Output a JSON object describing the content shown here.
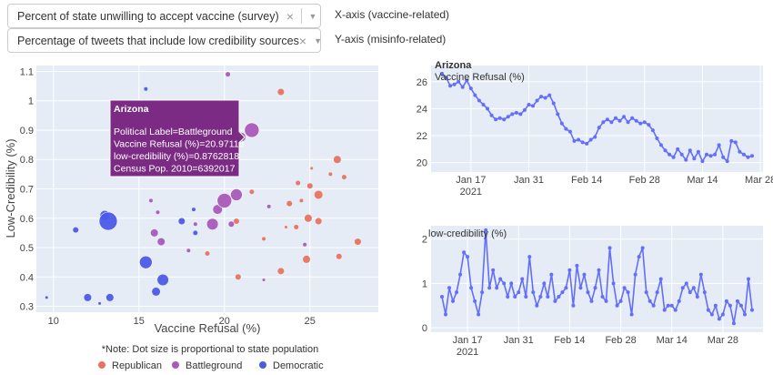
{
  "controls": {
    "x_select": {
      "value": "Percent of state unwilling to accept vaccine (survey)",
      "label": "X-axis (vaccine-related)"
    },
    "y_select": {
      "value": "Percentage of tweets that include low credibility sources",
      "label": "Y-axis (misinfo-related)"
    }
  },
  "modebar": [
    "camera-icon",
    "zoom-icon",
    "pan-icon",
    "box-select-icon",
    "lasso-icon",
    "zoom-in-icon",
    "zoom-out-icon",
    "autoscale-icon",
    "reset-axes-icon",
    "spike-lines-icon",
    "hover-closest-icon",
    "hover-compare-icon",
    "plotly-logo-icon"
  ],
  "colors": {
    "Republican": "#E8735F",
    "Battleground": "#A95AB8",
    "Democratic": "#4B5BE8",
    "line": "#636EFA",
    "plot_bg": "#E5ECF6"
  },
  "note": "*Note: Dot size is proportional to state population",
  "tooltip": {
    "title": "Arizona",
    "lines": [
      "Political Label=Battleground",
      "Vaccine Refusal (%)=20.97118",
      "low-credibility (%)=0.8762818",
      "Census Pop. 2010=6392017"
    ]
  },
  "chart_data": [
    {
      "type": "scatter",
      "xlabel": "Vaccine Refusal (%)",
      "ylabel": "Low-Credibility (%)",
      "xlim": [
        9,
        29
      ],
      "ylim": [
        0.28,
        1.12
      ],
      "x_ticks": [
        10,
        15,
        20,
        25
      ],
      "y_ticks": [
        0.3,
        0.4,
        0.5,
        0.6,
        0.7,
        0.8,
        0.9,
        1,
        1.1
      ],
      "legend": [
        "Republican",
        "Battleground",
        "Democratic"
      ],
      "points": [
        {
          "x": 9.6,
          "y": 0.33,
          "g": "Democratic",
          "s": 1.5
        },
        {
          "x": 11.3,
          "y": 0.56,
          "g": "Democratic",
          "s": 3
        },
        {
          "x": 12,
          "y": 0.33,
          "g": "Democratic",
          "s": 4
        },
        {
          "x": 12.7,
          "y": 0.31,
          "g": "Democratic",
          "s": 1.5
        },
        {
          "x": 13,
          "y": 0.61,
          "g": "Democratic",
          "s": 5
        },
        {
          "x": 13.2,
          "y": 0.59,
          "g": "Democratic",
          "s": 10
        },
        {
          "x": 13.3,
          "y": 0.33,
          "g": "Democratic",
          "s": 4
        },
        {
          "x": 15.4,
          "y": 1.04,
          "g": "Democratic",
          "s": 2
        },
        {
          "x": 15.4,
          "y": 0.45,
          "g": "Democratic",
          "s": 7
        },
        {
          "x": 16,
          "y": 0.35,
          "g": "Democratic",
          "s": 4.5
        },
        {
          "x": 16.4,
          "y": 0.39,
          "g": "Democratic",
          "s": 6
        },
        {
          "x": 17.5,
          "y": 0.59,
          "g": "Democratic",
          "s": 3.5
        },
        {
          "x": 18.3,
          "y": 0.55,
          "g": "Democratic",
          "s": 2.5
        },
        {
          "x": 18.2,
          "y": 0.63,
          "g": "Democratic",
          "s": 2
        },
        {
          "x": 15.7,
          "y": 0.66,
          "g": "Battleground",
          "s": 2
        },
        {
          "x": 15.9,
          "y": 0.55,
          "g": "Battleground",
          "s": 4
        },
        {
          "x": 16.3,
          "y": 0.52,
          "g": "Battleground",
          "s": 4
        },
        {
          "x": 16.1,
          "y": 0.62,
          "g": "Battleground",
          "s": 2
        },
        {
          "x": 17.9,
          "y": 0.49,
          "g": "Battleground",
          "s": 2
        },
        {
          "x": 18.3,
          "y": 0.58,
          "g": "Battleground",
          "s": 2
        },
        {
          "x": 19.3,
          "y": 0.58,
          "g": "Battleground",
          "s": 6
        },
        {
          "x": 19.6,
          "y": 0.63,
          "g": "Battleground",
          "s": 5
        },
        {
          "x": 20,
          "y": 0.66,
          "g": "Battleground",
          "s": 8
        },
        {
          "x": 20.2,
          "y": 1.09,
          "g": "Battleground",
          "s": 2.5
        },
        {
          "x": 20.4,
          "y": 0.58,
          "g": "Battleground",
          "s": 3
        },
        {
          "x": 20.7,
          "y": 0.68,
          "g": "Battleground",
          "s": 6.5
        },
        {
          "x": 20.97,
          "y": 0.876,
          "g": "Battleground",
          "s": 5
        },
        {
          "x": 21.6,
          "y": 0.9,
          "g": "Battleground",
          "s": 8
        },
        {
          "x": 22.6,
          "y": 0.64,
          "g": "Battleground",
          "s": 2
        },
        {
          "x": 24.7,
          "y": 0.51,
          "g": "Battleground",
          "s": 2
        },
        {
          "x": 22.3,
          "y": 0.39,
          "g": "Battleground",
          "s": 1.5
        },
        {
          "x": 19,
          "y": 0.48,
          "g": "Republican",
          "s": 2.5
        },
        {
          "x": 20.7,
          "y": 0.59,
          "g": "Republican",
          "s": 3
        },
        {
          "x": 20.8,
          "y": 0.4,
          "g": "Republican",
          "s": 3
        },
        {
          "x": 21.6,
          "y": 0.69,
          "g": "Republican",
          "s": 2.5
        },
        {
          "x": 22.3,
          "y": 0.53,
          "g": "Republican",
          "s": 2
        },
        {
          "x": 23.3,
          "y": 1.03,
          "g": "Republican",
          "s": 3.5
        },
        {
          "x": 23.3,
          "y": 0.42,
          "g": "Republican",
          "s": 3.5
        },
        {
          "x": 23.6,
          "y": 0.57,
          "g": "Republican",
          "s": 1.5
        },
        {
          "x": 23.8,
          "y": 0.65,
          "g": "Republican",
          "s": 3
        },
        {
          "x": 24.2,
          "y": 0.57,
          "g": "Republican",
          "s": 2.5
        },
        {
          "x": 24.3,
          "y": 0.72,
          "g": "Republican",
          "s": 2.5
        },
        {
          "x": 24.5,
          "y": 0.66,
          "g": "Republican",
          "s": 2
        },
        {
          "x": 24.8,
          "y": 0.46,
          "g": "Republican",
          "s": 4
        },
        {
          "x": 24.9,
          "y": 0.6,
          "g": "Republican",
          "s": 4
        },
        {
          "x": 25,
          "y": 0.71,
          "g": "Republican",
          "s": 3
        },
        {
          "x": 25.1,
          "y": 0.77,
          "g": "Republican",
          "s": 1.5
        },
        {
          "x": 25.5,
          "y": 0.59,
          "g": "Republican",
          "s": 3.5
        },
        {
          "x": 25.5,
          "y": 0.68,
          "g": "Republican",
          "s": 4.5
        },
        {
          "x": 26.2,
          "y": 0.75,
          "g": "Republican",
          "s": 2
        },
        {
          "x": 26.6,
          "y": 0.8,
          "g": "Republican",
          "s": 4
        },
        {
          "x": 26.7,
          "y": 0.47,
          "g": "Republican",
          "s": 3
        },
        {
          "x": 27,
          "y": 0.74,
          "g": "Republican",
          "s": 2.5
        },
        {
          "x": 27.8,
          "y": 0.52,
          "g": "Republican",
          "s": 3.5
        }
      ]
    },
    {
      "type": "line",
      "title": "Arizona",
      "ylabel": "Vaccine Refusal (%)",
      "ylim": [
        19.3,
        27.2
      ],
      "y_ticks": [
        20,
        22,
        24,
        26
      ],
      "x_ticks": [
        "Jan 17|2021",
        "Jan 31",
        "Feb 14",
        "Feb 28",
        "Mar 14",
        "Mar 28"
      ],
      "x_start": "2021-01-10",
      "values": [
        26.6,
        26.3,
        25.7,
        25.8,
        26.0,
        25.6,
        26.1,
        25.5,
        25.0,
        24.6,
        24.3,
        24.0,
        23.5,
        23.2,
        23.3,
        23.2,
        23.4,
        23.6,
        23.7,
        23.6,
        23.9,
        24.3,
        24.2,
        24.6,
        24.9,
        24.8,
        25.0,
        24.4,
        23.6,
        22.9,
        22.5,
        22.3,
        21.6,
        21.7,
        21.5,
        21.4,
        21.7,
        21.9,
        22.6,
        23.0,
        23.2,
        23.0,
        23.3,
        23.1,
        23.4,
        23.0,
        23.3,
        23.1,
        22.9,
        23.0,
        22.8,
        22.4,
        21.8,
        21.3,
        20.9,
        20.6,
        20.4,
        21.0,
        20.6,
        20.2,
        20.9,
        20.3,
        20.8,
        20.1,
        20.6,
        20.5,
        20.6,
        21.3,
        20.4,
        20.1,
        21.6,
        21.5,
        20.8,
        20.6,
        20.4,
        20.5
      ]
    },
    {
      "type": "line",
      "ylabel": "low-credibility (%)",
      "ylim": [
        -0.1,
        2.3
      ],
      "y_ticks": [
        0,
        1,
        2
      ],
      "x_ticks": [
        "Jan 17|2021",
        "Jan 31",
        "Feb 14",
        "Feb 28",
        "Mar 14",
        "Mar 28"
      ],
      "x_start": "2021-01-10",
      "values": [
        0.7,
        0.3,
        0.9,
        0.6,
        0.8,
        1.2,
        1.7,
        1.6,
        0.9,
        0.6,
        0.3,
        0.8,
        2.2,
        0.9,
        1.3,
        0.9,
        1.1,
        1.0,
        0.7,
        1.0,
        0.7,
        0.8,
        1.1,
        0.7,
        1.6,
        0.8,
        0.5,
        0.7,
        1.0,
        0.7,
        1.2,
        0.6,
        0.7,
        0.8,
        0.9,
        1.3,
        0.5,
        1.4,
        0.9,
        1.2,
        0.8,
        0.6,
        0.9,
        1.3,
        0.7,
        0.6,
        1.8,
        1.0,
        0.5,
        0.6,
        0.9,
        0.8,
        0.3,
        1.2,
        1.6,
        1.8,
        0.8,
        0.6,
        0.5,
        0.8,
        1.1,
        0.4,
        0.5,
        0.5,
        0.4,
        0.6,
        0.9,
        1.0,
        0.8,
        0.9,
        0.7,
        1.2,
        0.8,
        0.4,
        0.3,
        0.5,
        0.2,
        0.3,
        0.6,
        0.5,
        0.1,
        0.6,
        0.5,
        0.3,
        1.1,
        0.4
      ]
    }
  ]
}
